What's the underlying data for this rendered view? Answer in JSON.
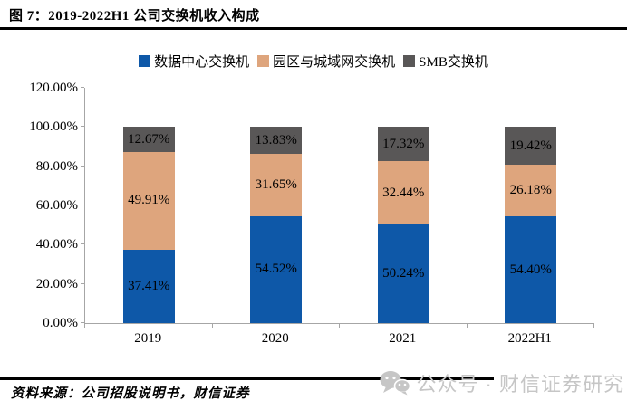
{
  "figure": {
    "title": "图 7：2019-2022H1 公司交换机收入构成",
    "source_note": "资料来源：公司招股说明书，财信证券",
    "watermark_text": "公众号 · 财信证券研究",
    "watermark_icon": "wechat-icon",
    "watermark_color": "#c6c6c6",
    "divider_color": "#000000"
  },
  "chart_data": {
    "type": "bar",
    "stacked": true,
    "unit": "percent",
    "grid": false,
    "legend_position": "top",
    "axis_color": "#a6a6a6",
    "label_color": "#000000",
    "ylim": [
      0,
      120
    ],
    "y_ticks": [
      "0.00%",
      "20.00%",
      "40.00%",
      "60.00%",
      "80.00%",
      "100.00%",
      "120.00%"
    ],
    "categories": [
      "2019",
      "2020",
      "2021",
      "2022H1"
    ],
    "series": [
      {
        "name": "数据中心交换机",
        "color": "#0E58A8",
        "values": [
          37.41,
          54.52,
          50.24,
          54.4
        ]
      },
      {
        "name": "园区与城域网交换机",
        "color": "#DEA57D",
        "values": [
          49.91,
          31.65,
          32.44,
          26.18
        ]
      },
      {
        "name": "SMB交换机",
        "color": "#595757",
        "values": [
          12.67,
          13.83,
          17.32,
          19.42
        ]
      }
    ]
  }
}
